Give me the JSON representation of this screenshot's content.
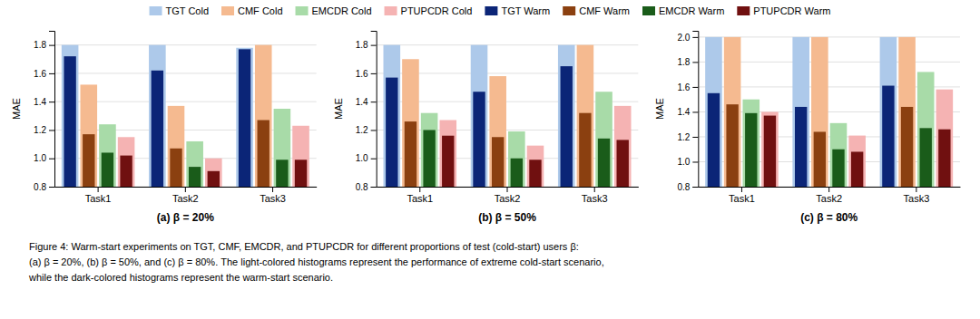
{
  "chart_data": [
    {
      "type": "bar",
      "xlabel": "(a) β = 20%",
      "ylabel": "MAE",
      "categories": [
        "Task1",
        "Task2",
        "Task3"
      ],
      "series": [
        {
          "name": "TGT Cold",
          "color": "#adc9ea",
          "values": [
            1.8,
            1.8,
            1.78
          ]
        },
        {
          "name": "CMF Cold",
          "color": "#f5ba90",
          "values": [
            1.52,
            1.37,
            1.8
          ]
        },
        {
          "name": "EMCDR Cold",
          "color": "#a8dba8",
          "values": [
            1.24,
            1.12,
            1.35
          ]
        },
        {
          "name": "PTUPCDR Cold",
          "color": "#f5b3b3",
          "values": [
            1.15,
            1.0,
            1.23
          ]
        },
        {
          "name": "TGT Warm",
          "color": "#0b2577",
          "values": [
            1.72,
            1.62,
            1.77
          ]
        },
        {
          "name": "CMF Warm",
          "color": "#8b4010",
          "values": [
            1.17,
            1.07,
            1.27
          ]
        },
        {
          "name": "EMCDR Warm",
          "color": "#1a5c1a",
          "values": [
            1.04,
            0.94,
            0.99
          ]
        },
        {
          "name": "PTUPCDR Warm",
          "color": "#701010",
          "values": [
            1.02,
            0.91,
            0.99
          ]
        }
      ],
      "ylim": [
        0.8,
        1.9
      ],
      "yticks": [
        0.8,
        {
          "value": 1.0,
          "label": "1.0"
        },
        1.2,
        1.4,
        1.6,
        1.8
      ],
      "grid": true,
      "legend": "top",
      "annotations": [
        "Figure 4: Warm-start experiments on TGT, CMF, EMCDR, and PTUPCDR for different proportions of test (cold-start) users β:",
        "(a) β = 20%, (b) β = 50%, and (c) β = 80%. The light-colored histograms represent the performance of extreme cold-start scenario,",
        "while the dark-colored histograms represent the warm-start scenario."
      ]
    },
    {
      "type": "bar",
      "xlabel": "(b) β = 50%",
      "ylabel": "MAE",
      "categories": [
        "Task1",
        "Task2",
        "Task3"
      ],
      "series": [
        {
          "name": "TGT Cold",
          "color": "#adc9ea",
          "values": [
            1.8,
            1.8,
            1.8
          ]
        },
        {
          "name": "CMF Cold",
          "color": "#f5ba90",
          "values": [
            1.7,
            1.58,
            1.8
          ]
        },
        {
          "name": "EMCDR Cold",
          "color": "#a8dba8",
          "values": [
            1.32,
            1.19,
            1.47
          ]
        },
        {
          "name": "PTUPCDR Cold",
          "color": "#f5b3b3",
          "values": [
            1.27,
            1.09,
            1.37
          ]
        },
        {
          "name": "TGT Warm",
          "color": "#0b2577",
          "values": [
            1.57,
            1.47,
            1.65
          ]
        },
        {
          "name": "CMF Warm",
          "color": "#8b4010",
          "values": [
            1.26,
            1.15,
            1.32
          ]
        },
        {
          "name": "EMCDR Warm",
          "color": "#1a5c1a",
          "values": [
            1.2,
            1.0,
            1.14
          ]
        },
        {
          "name": "PTUPCDR Warm",
          "color": "#701010",
          "values": [
            1.16,
            0.99,
            1.13
          ]
        }
      ],
      "ylim": [
        0.8,
        1.9
      ],
      "yticks": [
        0.8,
        {
          "value": 1.0,
          "label": "1.0"
        },
        1.2,
        1.4,
        1.6,
        1.8
      ],
      "grid": true
    },
    {
      "type": "bar",
      "xlabel": "(c) β = 80%",
      "ylabel": "MAE",
      "categories": [
        "Task1",
        "Task2",
        "Task3"
      ],
      "series": [
        {
          "name": "TGT Cold",
          "color": "#adc9ea",
          "values": [
            2.0,
            2.0,
            2.0
          ]
        },
        {
          "name": "CMF Cold",
          "color": "#f5ba90",
          "values": [
            2.0,
            2.0,
            2.0
          ]
        },
        {
          "name": "EMCDR Cold",
          "color": "#a8dba8",
          "values": [
            1.5,
            1.31,
            1.72
          ]
        },
        {
          "name": "PTUPCDR Cold",
          "color": "#f5b3b3",
          "values": [
            1.4,
            1.21,
            1.58
          ]
        },
        {
          "name": "TGT Warm",
          "color": "#0b2577",
          "values": [
            1.55,
            1.44,
            1.61
          ]
        },
        {
          "name": "CMF Warm",
          "color": "#8b4010",
          "values": [
            1.46,
            1.24,
            1.44
          ]
        },
        {
          "name": "EMCDR Warm",
          "color": "#1a5c1a",
          "values": [
            1.39,
            1.1,
            1.27
          ]
        },
        {
          "name": "PTUPCDR Warm",
          "color": "#701010",
          "values": [
            1.37,
            1.08,
            1.26
          ]
        }
      ],
      "ylim": [
        0.8,
        2.05
      ],
      "yticks": [
        0.8,
        {
          "value": 1.0,
          "label": "1.0"
        },
        1.2,
        1.4,
        1.6,
        1.8,
        {
          "value": 2.0,
          "label": "2.0"
        }
      ],
      "grid": true
    }
  ]
}
